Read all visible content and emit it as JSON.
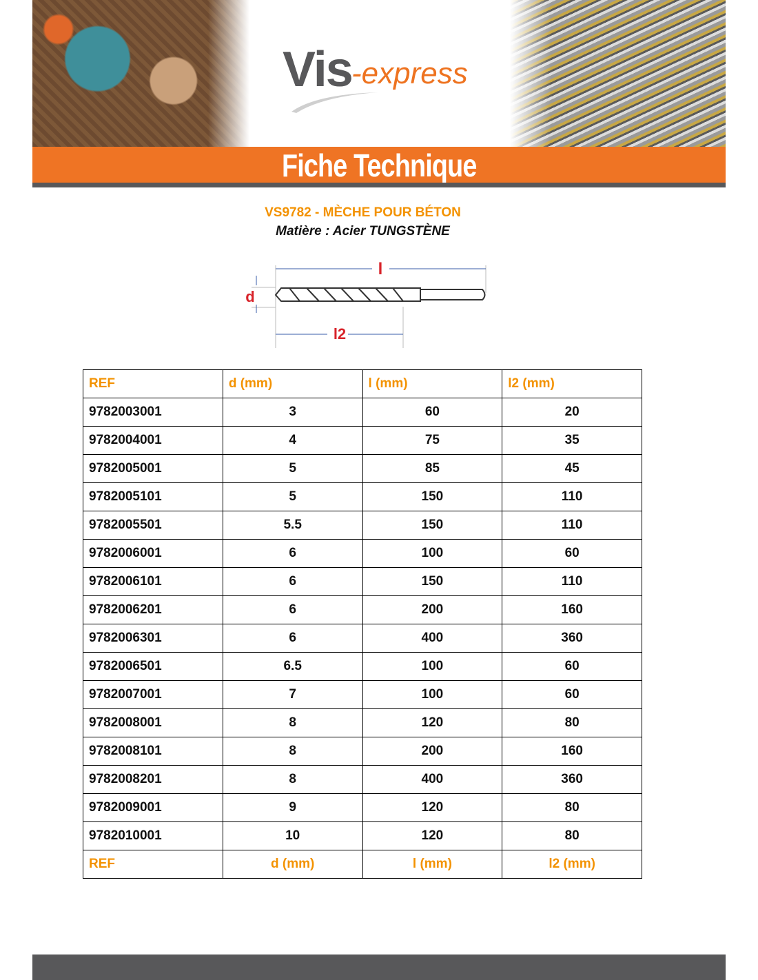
{
  "brand": {
    "logo_main": "Vis",
    "logo_suffix": "-express",
    "accent": "#ef7424",
    "dark": "#58585a"
  },
  "banner": {
    "title": "Fiche Technique"
  },
  "product": {
    "title": "VS9782 - MÈCHE POUR BÉTON",
    "material": "Matière : Acier TUNGSTÈNE"
  },
  "drawing": {
    "label_l": "l",
    "label_d": "d",
    "label_l2": "l2"
  },
  "table": {
    "headers": [
      "REF",
      "d (mm)",
      "l (mm)",
      "l2 (mm)"
    ],
    "rows": [
      [
        "9782003001",
        "3",
        "60",
        "20"
      ],
      [
        "9782004001",
        "4",
        "75",
        "35"
      ],
      [
        "9782005001",
        "5",
        "85",
        "45"
      ],
      [
        "9782005101",
        "5",
        "150",
        "110"
      ],
      [
        "9782005501",
        "5.5",
        "150",
        "110"
      ],
      [
        "9782006001",
        "6",
        "100",
        "60"
      ],
      [
        "9782006101",
        "6",
        "150",
        "110"
      ],
      [
        "9782006201",
        "6",
        "200",
        "160"
      ],
      [
        "9782006301",
        "6",
        "400",
        "360"
      ],
      [
        "9782006501",
        "6.5",
        "100",
        "60"
      ],
      [
        "9782007001",
        "7",
        "100",
        "60"
      ],
      [
        "9782008001",
        "8",
        "120",
        "80"
      ],
      [
        "9782008101",
        "8",
        "200",
        "160"
      ],
      [
        "9782008201",
        "8",
        "400",
        "360"
      ],
      [
        "9782009001",
        "9",
        "120",
        "80"
      ],
      [
        "9782010001",
        "10",
        "120",
        "80"
      ]
    ]
  }
}
